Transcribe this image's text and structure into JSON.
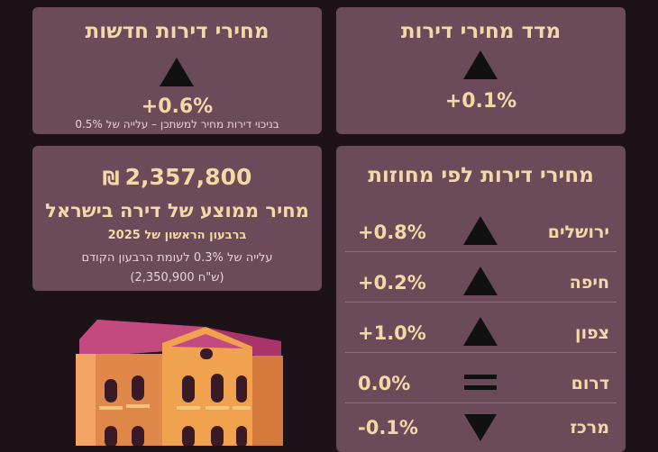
{
  "cards": {
    "price_index": {
      "title": "מדד מחירי דירות",
      "change": "+0.1%"
    },
    "new_homes": {
      "title": "מחירי דירות חדשות",
      "change": "+0.6%",
      "note": "בניכוי דירות מחיר למשתכן – עלייה של 0.5%"
    },
    "average": {
      "price": "2,357,800",
      "currency": "₪",
      "title": "מחיר ממוצע של דירה בישראל",
      "period": "ברבעון הראשון של 2025",
      "note1": "עלייה של 0.3% לעומת הרבעון הקודם",
      "note2": "(2,350,900 ש\"ח)"
    },
    "regions": {
      "title": "מחירי דירות לפי מחוזות",
      "rows": [
        {
          "name": "ירושלים",
          "value": "+0.8%",
          "trend": "up"
        },
        {
          "name": "חיפה",
          "value": "+0.2%",
          "trend": "up"
        },
        {
          "name": "צפון",
          "value": "+1.0%",
          "trend": "up"
        },
        {
          "name": "דרום",
          "value": "0.0%",
          "trend": "flat"
        },
        {
          "name": "מרכז",
          "value": "-0.1%",
          "trend": "down"
        }
      ]
    }
  },
  "colors": {
    "background": "#1e1219",
    "card": "#6b4b59",
    "accent": "#f3d9a6"
  }
}
